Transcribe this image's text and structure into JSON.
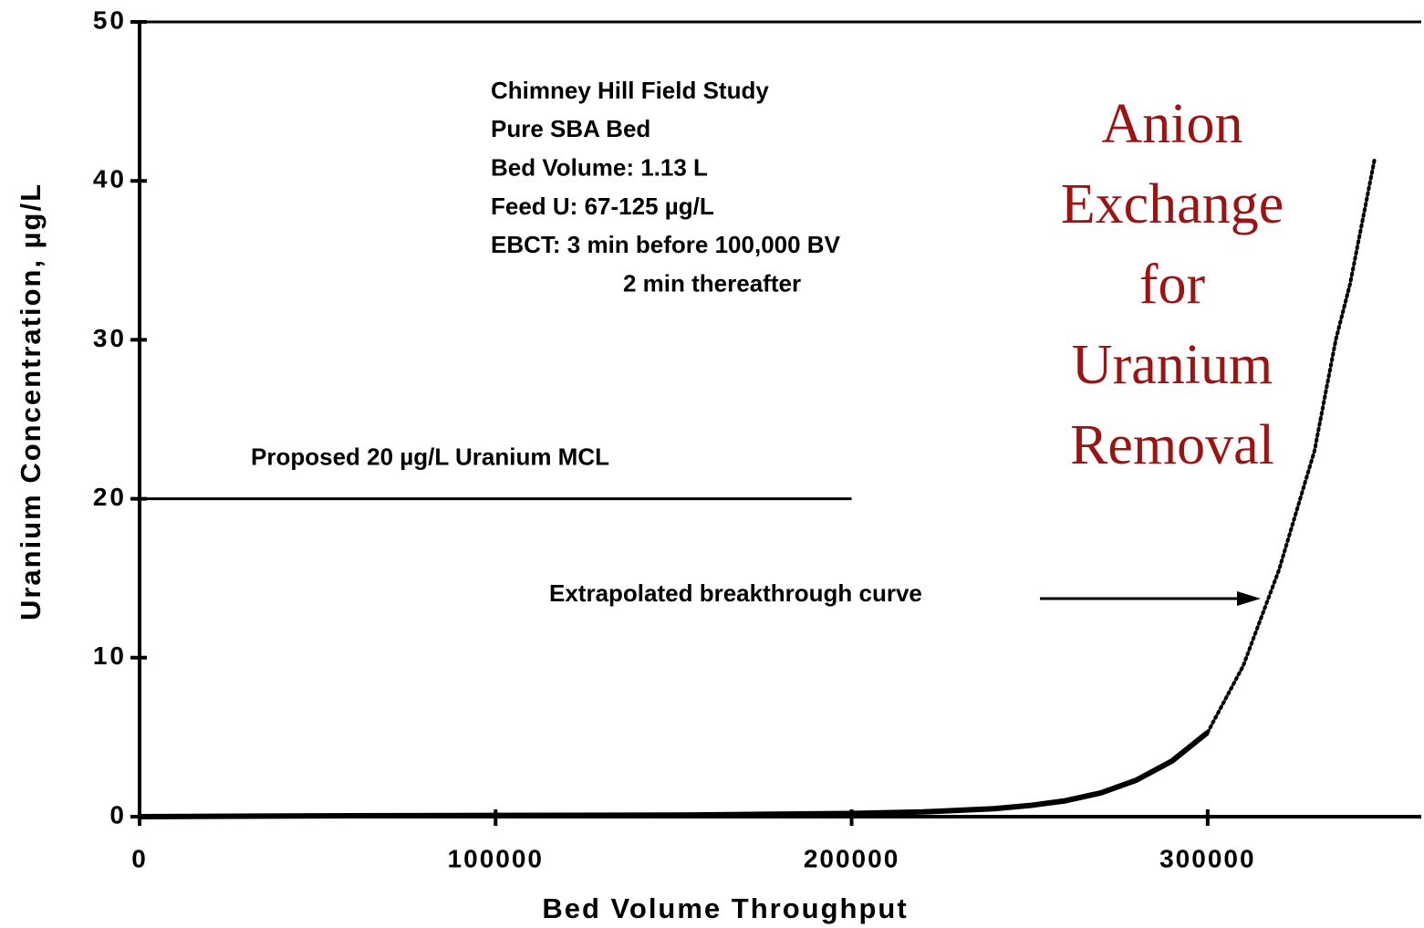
{
  "chart_data": {
    "type": "line",
    "xlabel": "Bed Volume Throughput",
    "ylabel": "Uranium Concentration,    µg/L",
    "xlim": [
      0,
      360000
    ],
    "ylim": [
      0,
      50
    ],
    "xticks": [
      0,
      100000,
      200000,
      300000
    ],
    "yticks": [
      0,
      10,
      20,
      30,
      40,
      50
    ],
    "series": [
      {
        "style": "solid",
        "color": "#000000",
        "x": [
          0,
          50000,
          100000,
          150000,
          200000,
          220000,
          240000,
          250000,
          260000,
          270000,
          280000,
          290000,
          300000
        ],
        "values": [
          0,
          0.05,
          0.08,
          0.1,
          0.2,
          0.3,
          0.5,
          0.7,
          1.0,
          1.5,
          2.3,
          3.5,
          5.3
        ]
      },
      {
        "style": "dotted",
        "color": "#000000",
        "x": [
          300000,
          310000,
          320000,
          330000,
          336000,
          340000,
          347000
        ],
        "values": [
          5.3,
          9.5,
          15.5,
          23,
          30,
          33.5,
          41.5
        ]
      }
    ],
    "reference_line": {
      "label": "Proposed  20  µg/L  Uranium  MCL",
      "value": 20,
      "x_end": 200000
    },
    "study_notes": [
      "Chimney  Hill  Field  Study",
      "Pure SBA Bed",
      "Bed Volume:  1.13 L",
      "Feed U:   67-125 µg/L",
      "EBCT:  3 min before 100,000 BV",
      "2 min thereafter"
    ],
    "curve_annotation": "Extrapolated  breakthrough  curve",
    "overlay_title": [
      "Anion",
      "Exchange",
      "for",
      "Uranium",
      "Removal"
    ]
  }
}
